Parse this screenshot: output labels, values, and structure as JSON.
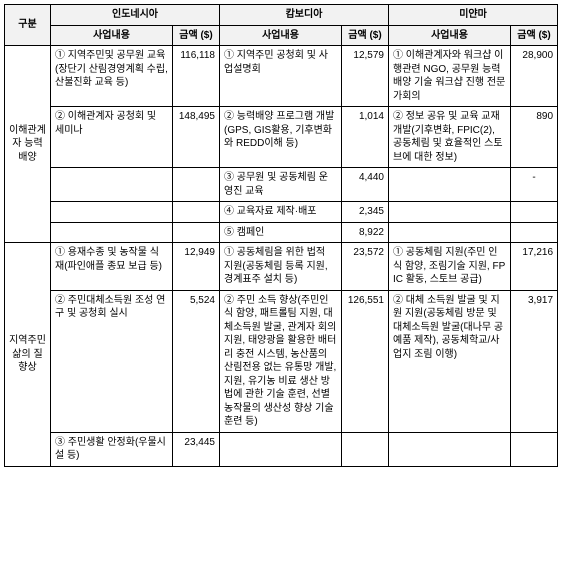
{
  "headers": {
    "gubun": "구분",
    "countries": [
      "인도네시아",
      "캄보디아",
      "미얀마"
    ],
    "content_label": "사업내용",
    "amount_label": "금액\n($)"
  },
  "section1": {
    "category": "이해관계자 능력배양",
    "rows": [
      {
        "id_c": "① 지역주민및 공무원 교육(장단기 산림경영계획 수립, 산불진화 교육 등)",
        "id_a": "116,118",
        "kh_c": "① 지역주민 공청회 및 사업설명회",
        "kh_a": "12,579",
        "mm_c": "① 이해관계자와 워크샵 이행관련 NGO, 공무원 능력배양 기술 워크샵 진행 전문가회의",
        "mm_a": "28,900"
      },
      {
        "id_c": "② 이해관계자 공청회 및 세미나",
        "id_a": "148,495",
        "kh_c": "② 능력배양 프로그램 개발(GPS, GIS활용, 기후변화와 REDD이해 등)",
        "kh_a": "1,014",
        "mm_c": "② 정보 공유 및 교육 교재 개발(기후변화, FPIC(2), 공동체림 및 효율적인 스토브에 대한 정보)",
        "mm_a": "890"
      },
      {
        "id_c": "",
        "id_a": "",
        "kh_c": "③ 공무원 및 공동체림 운영진 교육",
        "kh_a": "4,440",
        "mm_c": "",
        "mm_a": "-"
      },
      {
        "id_c": "",
        "id_a": "",
        "kh_c": "④ 교육자료 제작·배포",
        "kh_a": "2,345",
        "mm_c": "",
        "mm_a": ""
      },
      {
        "id_c": "",
        "id_a": "",
        "kh_c": "⑤ 캠페인",
        "kh_a": "8,922",
        "mm_c": "",
        "mm_a": ""
      }
    ]
  },
  "section2": {
    "category": "지역주민 삶의 질 향상",
    "rows": [
      {
        "id_c": "① 용재수종 및 농작물 식재(파인애플 종묘 보급 등)",
        "id_a": "12,949",
        "kh_c": "① 공동체림을 위한 법적 지원(공동체림 등록 지원, 경계표주 설치 등)",
        "kh_a": "23,572",
        "mm_c": "① 공동체림 지원(주민 인식 함양, 조림기술 지원, FPIC 활동, 스토브 공급)",
        "mm_a": "17,216"
      },
      {
        "id_c": "② 주민대체소득원 조성 연구 및 공청회 실시",
        "id_a": "5,524",
        "kh_c": "② 주민 소득 향상(주민인식 함양, 패트롤팀 지원, 대체소득원 발굴, 관계자 회의 지원, 태양광을 활용한 배터리 충전 시스템, 농산품의 산림전용 없는 유통망 개발, 지원, 유기농 비료 생산 방법에 관한 기술 훈련, 선별 농작물의 생산성 향상 기술 훈련 등)",
        "kh_a": "126,551",
        "mm_c": "② 대체 소득원 발굴 및 지원 지원(공동체림 방문 및 대체소득원 발굴(대나무 공예품 제작), 공동체학교/사업지 조림 이행)",
        "mm_a": "3,917"
      },
      {
        "id_c": "③ 주민생활 안정화(우물시설 등)",
        "id_a": "23,445",
        "kh_c": "",
        "kh_a": "",
        "mm_c": "",
        "mm_a": ""
      }
    ]
  }
}
